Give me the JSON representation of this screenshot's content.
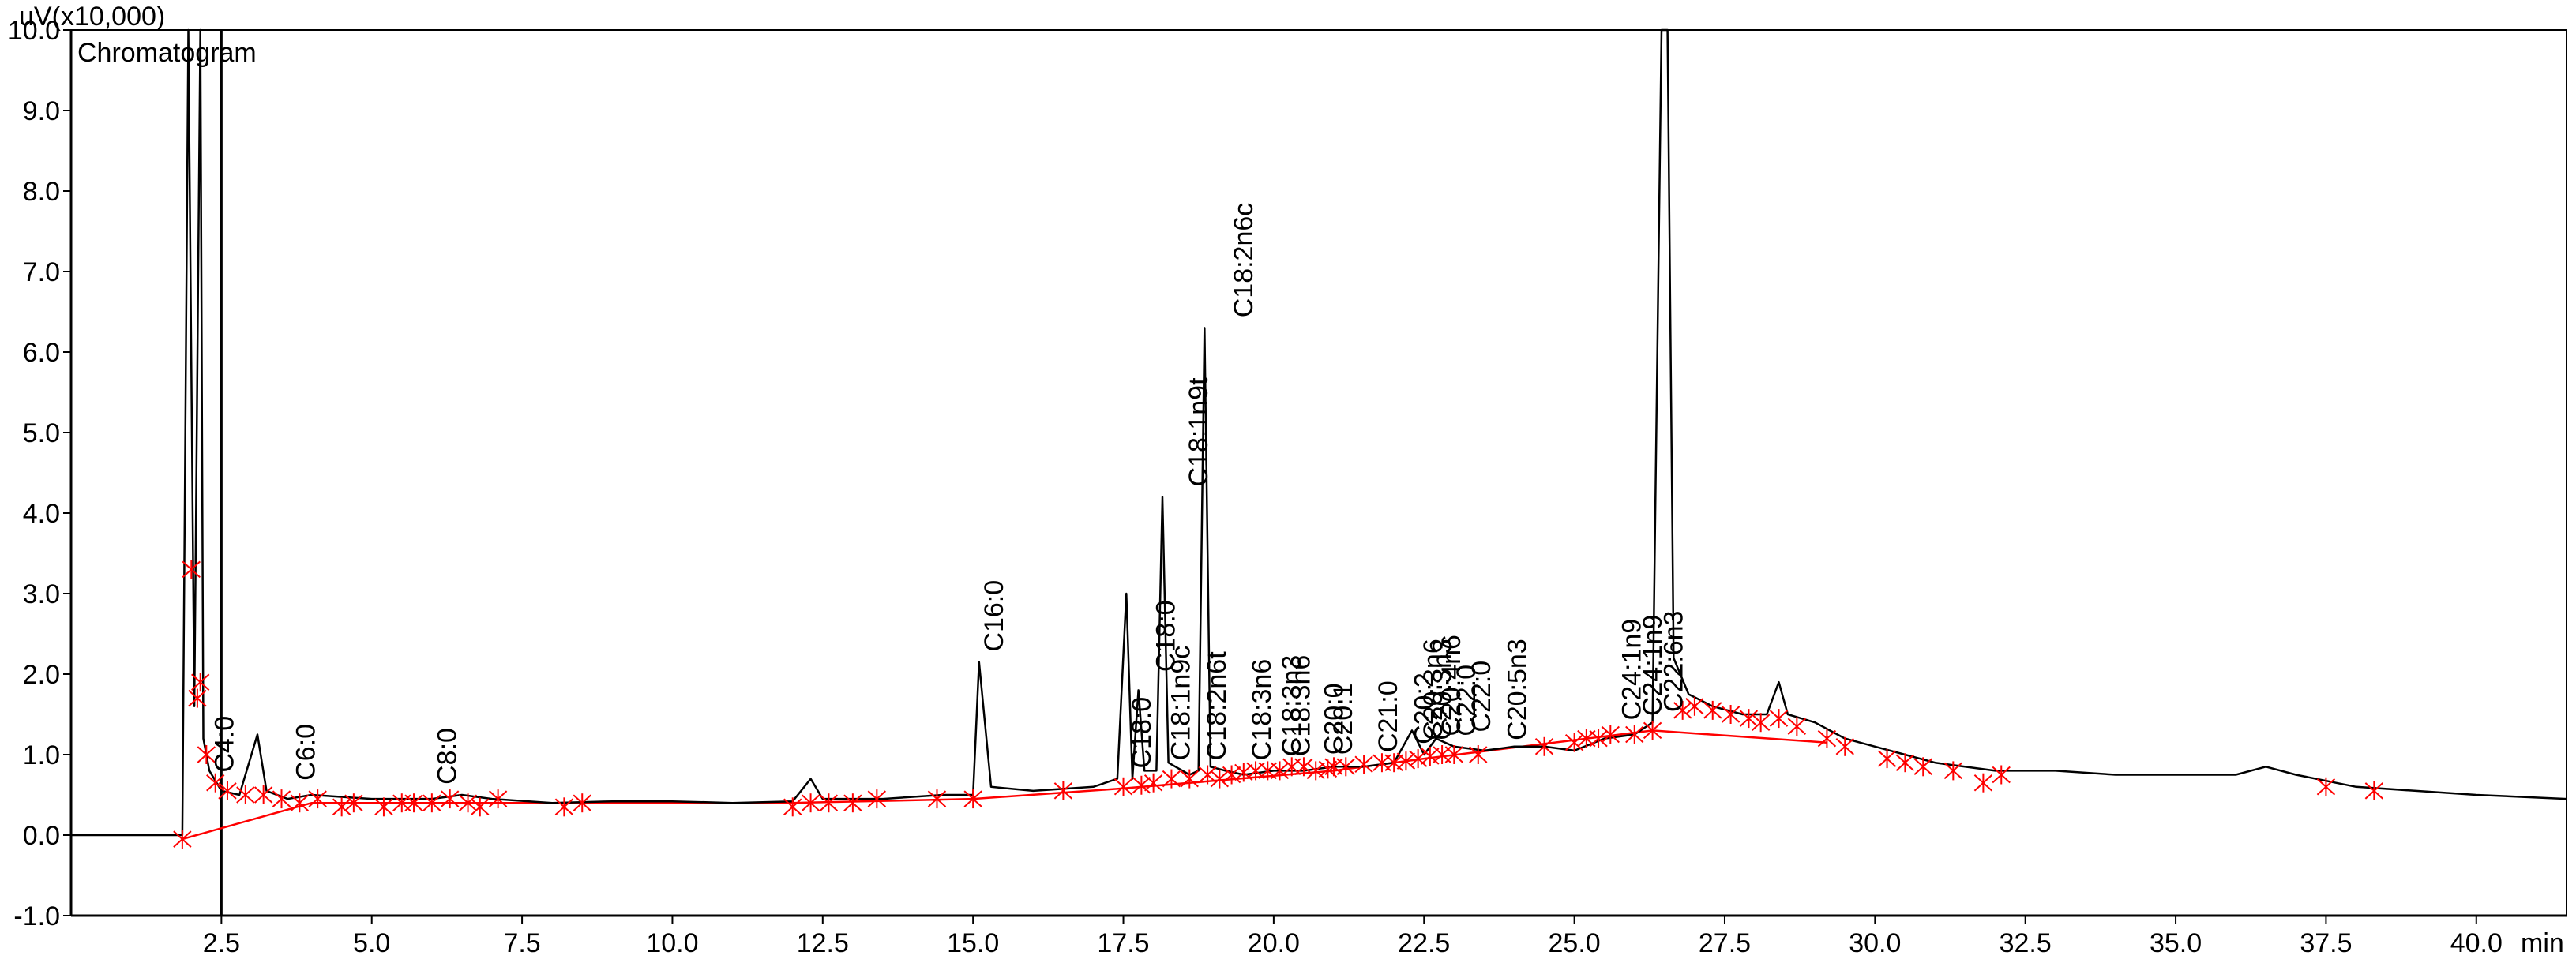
{
  "colors": {
    "trace": "#000000",
    "baseline": "#ff0000",
    "integration_marks": "#ff0000",
    "highlight_label": "#1f3a9a",
    "axes": "#000000",
    "background": "#ffffff"
  },
  "chart_data": {
    "type": "line",
    "title": "Chromatogram",
    "ylabel": "uV(x10,000)",
    "xlabel": "min",
    "xlim": [
      0,
      41.5
    ],
    "ylim": [
      -1.0,
      10.0
    ],
    "grid": false,
    "yticks": [
      {
        "v": -1.0,
        "label": "-1.0"
      },
      {
        "v": 0.0,
        "label": "0.0"
      },
      {
        "v": 1.0,
        "label": "1.0"
      },
      {
        "v": 2.0,
        "label": "2.0"
      },
      {
        "v": 3.0,
        "label": "3.0"
      },
      {
        "v": 4.0,
        "label": "4.0"
      },
      {
        "v": 5.0,
        "label": "5.0"
      },
      {
        "v": 6.0,
        "label": "6.0"
      },
      {
        "v": 7.0,
        "label": "7.0"
      },
      {
        "v": 8.0,
        "label": "8.0"
      },
      {
        "v": 9.0,
        "label": "9.0"
      },
      {
        "v": 10.0,
        "label": "10.0"
      }
    ],
    "xticks": [
      {
        "v": 2.5,
        "label": "2.5"
      },
      {
        "v": 5.0,
        "label": "5.0"
      },
      {
        "v": 7.5,
        "label": "7.5"
      },
      {
        "v": 10.0,
        "label": "10.0"
      },
      {
        "v": 12.5,
        "label": "12.5"
      },
      {
        "v": 15.0,
        "label": "15.0"
      },
      {
        "v": 17.5,
        "label": "17.5"
      },
      {
        "v": 20.0,
        "label": "20.0"
      },
      {
        "v": 22.5,
        "label": "22.5"
      },
      {
        "v": 25.0,
        "label": "25.0"
      },
      {
        "v": 27.5,
        "label": "27.5"
      },
      {
        "v": 30.0,
        "label": "30.0"
      },
      {
        "v": 32.5,
        "label": "32.5"
      },
      {
        "v": 35.0,
        "label": "35.0"
      },
      {
        "v": 37.5,
        "label": "37.5"
      },
      {
        "v": 40.0,
        "label": "40.0"
      }
    ],
    "vertical_markers": [
      2.5
    ],
    "series": [
      {
        "kind": "trace",
        "points": [
          [
            0.0,
            0.0
          ],
          [
            1.85,
            0.0
          ],
          [
            1.95,
            10.0
          ],
          [
            2.05,
            1.6
          ],
          [
            2.15,
            10.0
          ],
          [
            2.2,
            1.2
          ],
          [
            2.3,
            0.8
          ],
          [
            2.5,
            0.55
          ],
          [
            2.8,
            0.5
          ],
          [
            3.1,
            1.25
          ],
          [
            3.25,
            0.55
          ],
          [
            3.6,
            0.45
          ],
          [
            4.0,
            0.5
          ],
          [
            5.0,
            0.45
          ],
          [
            6.0,
            0.45
          ],
          [
            6.5,
            0.5
          ],
          [
            7.0,
            0.45
          ],
          [
            8.0,
            0.4
          ],
          [
            9.0,
            0.42
          ],
          [
            10.0,
            0.42
          ],
          [
            11.0,
            0.4
          ],
          [
            12.0,
            0.42
          ],
          [
            12.3,
            0.7
          ],
          [
            12.5,
            0.45
          ],
          [
            13.5,
            0.45
          ],
          [
            14.5,
            0.5
          ],
          [
            15.0,
            0.5
          ],
          [
            15.1,
            2.15
          ],
          [
            15.3,
            0.6
          ],
          [
            16.0,
            0.55
          ],
          [
            17.0,
            0.6
          ],
          [
            17.4,
            0.7
          ],
          [
            17.55,
            3.0
          ],
          [
            17.65,
            0.7
          ],
          [
            17.75,
            1.8
          ],
          [
            17.85,
            0.8
          ],
          [
            18.05,
            0.8
          ],
          [
            18.15,
            4.2
          ],
          [
            18.25,
            0.9
          ],
          [
            18.6,
            0.75
          ],
          [
            18.75,
            0.8
          ],
          [
            18.85,
            6.3
          ],
          [
            18.95,
            0.85
          ],
          [
            19.2,
            0.8
          ],
          [
            19.5,
            0.75
          ],
          [
            20.0,
            0.8
          ],
          [
            20.5,
            0.8
          ],
          [
            21.0,
            0.85
          ],
          [
            21.5,
            0.85
          ],
          [
            22.0,
            0.9
          ],
          [
            22.3,
            1.3
          ],
          [
            22.5,
            1.0
          ],
          [
            22.7,
            1.2
          ],
          [
            23.0,
            1.1
          ],
          [
            23.5,
            1.05
          ],
          [
            24.0,
            1.1
          ],
          [
            24.5,
            1.1
          ],
          [
            25.0,
            1.05
          ],
          [
            25.5,
            1.2
          ],
          [
            26.0,
            1.25
          ],
          [
            26.3,
            1.4
          ],
          [
            26.45,
            10.0
          ],
          [
            26.55,
            10.0
          ],
          [
            26.65,
            2.2
          ],
          [
            26.9,
            1.75
          ],
          [
            27.3,
            1.6
          ],
          [
            27.8,
            1.5
          ],
          [
            28.2,
            1.5
          ],
          [
            28.4,
            1.9
          ],
          [
            28.55,
            1.5
          ],
          [
            29.0,
            1.4
          ],
          [
            29.5,
            1.2
          ],
          [
            30.0,
            1.1
          ],
          [
            30.5,
            1.0
          ],
          [
            31.0,
            0.9
          ],
          [
            32.0,
            0.8
          ],
          [
            33.0,
            0.8
          ],
          [
            34.0,
            0.75
          ],
          [
            35.0,
            0.75
          ],
          [
            36.0,
            0.75
          ],
          [
            36.5,
            0.85
          ],
          [
            37.0,
            0.75
          ],
          [
            38.0,
            0.6
          ],
          [
            39.0,
            0.55
          ],
          [
            40.0,
            0.5
          ],
          [
            41.5,
            0.45
          ]
        ]
      },
      {
        "kind": "baseline",
        "points": [
          [
            1.85,
            -0.05
          ],
          [
            4.0,
            0.4
          ],
          [
            12.0,
            0.4
          ],
          [
            15.0,
            0.45
          ],
          [
            17.5,
            0.58
          ],
          [
            21.0,
            0.8
          ],
          [
            22.5,
            0.95
          ],
          [
            26.3,
            1.3
          ],
          [
            29.2,
            1.15
          ]
        ]
      }
    ],
    "integration_marks": [
      [
        1.85,
        -0.05
      ],
      [
        2.0,
        3.3
      ],
      [
        2.1,
        1.7
      ],
      [
        2.15,
        1.9
      ],
      [
        2.25,
        1.0
      ],
      [
        2.4,
        0.65
      ],
      [
        2.6,
        0.55
      ],
      [
        2.9,
        0.5
      ],
      [
        3.2,
        0.5
      ],
      [
        3.5,
        0.45
      ],
      [
        3.8,
        0.4
      ],
      [
        4.1,
        0.45
      ],
      [
        4.5,
        0.35
      ],
      [
        4.7,
        0.4
      ],
      [
        5.2,
        0.35
      ],
      [
        5.5,
        0.4
      ],
      [
        5.7,
        0.4
      ],
      [
        6.0,
        0.4
      ],
      [
        6.3,
        0.45
      ],
      [
        6.6,
        0.4
      ],
      [
        6.8,
        0.35
      ],
      [
        7.1,
        0.45
      ],
      [
        8.2,
        0.35
      ],
      [
        8.5,
        0.4
      ],
      [
        12.0,
        0.35
      ],
      [
        12.3,
        0.4
      ],
      [
        12.6,
        0.4
      ],
      [
        13.0,
        0.4
      ],
      [
        13.4,
        0.45
      ],
      [
        14.4,
        0.45
      ],
      [
        15.0,
        0.45
      ],
      [
        16.5,
        0.55
      ],
      [
        17.5,
        0.6
      ],
      [
        17.8,
        0.62
      ],
      [
        18.0,
        0.65
      ],
      [
        18.3,
        0.7
      ],
      [
        18.6,
        0.7
      ],
      [
        18.9,
        0.75
      ],
      [
        19.1,
        0.7
      ],
      [
        19.3,
        0.75
      ],
      [
        19.5,
        0.78
      ],
      [
        19.7,
        0.8
      ],
      [
        19.9,
        0.8
      ],
      [
        20.1,
        0.8
      ],
      [
        20.3,
        0.85
      ],
      [
        20.5,
        0.85
      ],
      [
        20.7,
        0.8
      ],
      [
        20.9,
        0.82
      ],
      [
        21.0,
        0.85
      ],
      [
        21.2,
        0.85
      ],
      [
        21.5,
        0.88
      ],
      [
        21.8,
        0.9
      ],
      [
        22.0,
        0.9
      ],
      [
        22.2,
        0.92
      ],
      [
        22.4,
        0.95
      ],
      [
        22.6,
        0.98
      ],
      [
        22.8,
        1.0
      ],
      [
        23.0,
        1.0
      ],
      [
        23.4,
        1.0
      ],
      [
        24.5,
        1.1
      ],
      [
        25.0,
        1.15
      ],
      [
        25.2,
        1.2
      ],
      [
        25.4,
        1.2
      ],
      [
        25.6,
        1.25
      ],
      [
        26.0,
        1.25
      ],
      [
        26.3,
        1.3
      ],
      [
        26.8,
        1.55
      ],
      [
        27.0,
        1.6
      ],
      [
        27.3,
        1.55
      ],
      [
        27.6,
        1.5
      ],
      [
        27.9,
        1.45
      ],
      [
        28.1,
        1.4
      ],
      [
        28.4,
        1.45
      ],
      [
        28.7,
        1.35
      ],
      [
        29.2,
        1.2
      ],
      [
        29.5,
        1.1
      ],
      [
        30.2,
        0.95
      ],
      [
        30.5,
        0.9
      ],
      [
        30.8,
        0.85
      ],
      [
        31.3,
        0.8
      ],
      [
        31.8,
        0.65
      ],
      [
        32.1,
        0.75
      ],
      [
        37.5,
        0.6
      ],
      [
        38.3,
        0.55
      ]
    ],
    "annotations": [
      {
        "label": "C4:0",
        "x": 2.7,
        "y": 0.7
      },
      {
        "label": "C6:0",
        "x": 4.05,
        "y": 0.6
      },
      {
        "label": "C8:0",
        "x": 6.4,
        "y": 0.55
      },
      {
        "label": "C16:0",
        "x": 15.5,
        "y": 2.2
      },
      {
        "label": "C18:0",
        "x": 17.95,
        "y": 0.75
      },
      {
        "label": "C18:0",
        "x": 18.35,
        "y": 1.95
      },
      {
        "label": "C18:1n9c",
        "x": 18.6,
        "y": 0.85
      },
      {
        "label": "C18:1n9t",
        "x": 18.9,
        "y": 4.25
      },
      {
        "label": "C18:2n6t",
        "x": 19.2,
        "y": 0.85
      },
      {
        "label": "C18:2n6c",
        "x": 19.65,
        "y": 6.35
      },
      {
        "label": "C18:3n6",
        "x": 19.95,
        "y": 0.85
      },
      {
        "label": "C18:3n3",
        "x": 20.45,
        "y": 0.9
      },
      {
        "label": "C18:3n6",
        "x": 20.6,
        "y": 0.9
      },
      {
        "label": "C20:0",
        "x": 21.15,
        "y": 0.92
      },
      {
        "label": "C20:1",
        "x": 21.3,
        "y": 0.92
      },
      {
        "label": "C21:0",
        "x": 22.05,
        "y": 0.95
      },
      {
        "label": "C20:2",
        "x": 22.65,
        "y": 1.05,
        "highlight": true
      },
      {
        "label": "C20:3n6",
        "x": 22.8,
        "y": 1.1
      },
      {
        "label": "C20:3n3",
        "x": 22.95,
        "y": 1.1
      },
      {
        "label": "C20:4n6",
        "x": 23.1,
        "y": 1.15
      },
      {
        "label": "C22:0",
        "x": 23.35,
        "y": 1.15
      },
      {
        "label": "C22:0",
        "x": 23.6,
        "y": 1.2
      },
      {
        "label": "C20:5n3",
        "x": 24.2,
        "y": 1.1
      },
      {
        "label": "C24:1n9",
        "x": 26.1,
        "y": 1.35
      },
      {
        "label": "C24:1n9",
        "x": 26.45,
        "y": 1.4
      },
      {
        "label": "C22:6n3",
        "x": 26.8,
        "y": 1.45
      }
    ]
  }
}
